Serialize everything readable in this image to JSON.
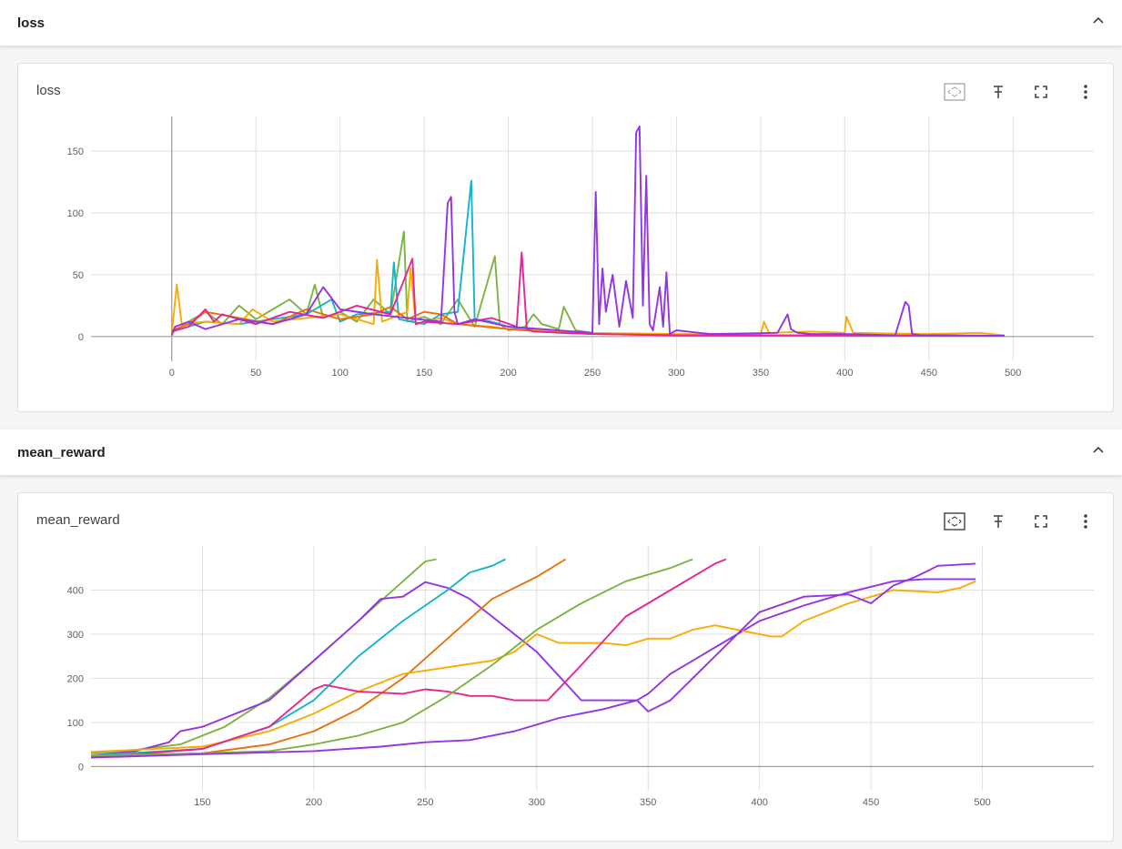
{
  "sections": [
    {
      "title": "loss",
      "card": {
        "title": "loss",
        "toolbar": [
          "fit-domain-icon",
          "pin-icon",
          "fullscreen-icon",
          "more-vert-icon"
        ]
      }
    },
    {
      "title": "mean_reward",
      "card": {
        "title": "mean_reward",
        "toolbar": [
          "fit-domain-icon",
          "pin-icon",
          "fullscreen-icon",
          "more-vert-icon"
        ]
      }
    }
  ],
  "colors": {
    "green": "#7cb342",
    "cyan": "#12b5cb",
    "orange": "#e8710a",
    "yellow": "#f9ab00",
    "pink": "#e52592",
    "purple": "#9334e6"
  },
  "chart_data": [
    {
      "type": "line",
      "title": "loss",
      "xlim": [
        -48,
        548
      ],
      "ylim": [
        -20,
        178
      ],
      "x_ticks": [
        0,
        50,
        100,
        150,
        200,
        250,
        300,
        350,
        400,
        450,
        500
      ],
      "y_ticks": [
        0,
        50,
        100,
        150
      ],
      "grid": true,
      "series": [
        {
          "color": "green",
          "x": [
            0,
            10,
            20,
            30,
            40,
            50,
            60,
            70,
            80,
            85,
            90,
            100,
            110,
            120,
            130,
            138,
            140,
            150,
            160,
            170,
            180,
            192,
            195,
            200,
            210,
            215,
            220,
            230,
            233,
            240,
            250,
            270,
            300,
            350,
            400,
            450,
            495
          ],
          "y": [
            3,
            12,
            20,
            10,
            25,
            14,
            22,
            30,
            18,
            42,
            15,
            20,
            12,
            30,
            18,
            85,
            12,
            16,
            10,
            30,
            8,
            65,
            10,
            5,
            8,
            18,
            10,
            6,
            24,
            5,
            3,
            2,
            1,
            1,
            1,
            0.5,
            0.5
          ]
        },
        {
          "color": "cyan",
          "x": [
            0,
            10,
            20,
            40,
            60,
            80,
            95,
            100,
            110,
            130,
            132,
            135,
            150,
            160,
            170,
            178,
            180,
            190,
            200,
            230,
            300,
            400,
            495
          ],
          "y": [
            4,
            8,
            12,
            10,
            14,
            18,
            30,
            12,
            18,
            20,
            60,
            14,
            10,
            18,
            20,
            126,
            14,
            12,
            8,
            3,
            1,
            1,
            0.5
          ]
        },
        {
          "color": "yellow",
          "x": [
            0,
            3,
            6,
            20,
            40,
            48,
            60,
            80,
            100,
            120,
            122,
            125,
            140,
            142,
            145,
            160,
            170,
            190,
            200,
            250,
            300,
            350,
            352,
            355,
            380,
            400,
            401,
            405,
            450,
            480,
            495
          ],
          "y": [
            3,
            42,
            10,
            12,
            10,
            22,
            12,
            15,
            18,
            10,
            62,
            12,
            20,
            55,
            10,
            15,
            10,
            8,
            6,
            3,
            2,
            2,
            12,
            3,
            4,
            3,
            16,
            3,
            2,
            3,
            1
          ]
        },
        {
          "color": "orange",
          "x": [
            0,
            10,
            20,
            40,
            60,
            80,
            100,
            120,
            130,
            140,
            150,
            160,
            170,
            200,
            220,
            250,
            300,
            400,
            495
          ],
          "y": [
            5,
            10,
            20,
            15,
            10,
            22,
            14,
            18,
            24,
            14,
            20,
            18,
            10,
            6,
            4,
            2,
            1,
            1,
            0.5
          ]
        },
        {
          "color": "pink",
          "x": [
            0,
            10,
            20,
            25,
            30,
            50,
            70,
            90,
            110,
            130,
            143,
            145,
            150,
            170,
            190,
            205,
            208,
            211,
            215,
            250,
            300,
            400,
            495
          ],
          "y": [
            4,
            8,
            22,
            12,
            18,
            10,
            20,
            15,
            25,
            18,
            63,
            10,
            12,
            10,
            15,
            8,
            68,
            6,
            4,
            2,
            1,
            1,
            0.5
          ]
        },
        {
          "color": "purple",
          "x": [
            0,
            2,
            10,
            20,
            40,
            60,
            80,
            90,
            100,
            120,
            140,
            160,
            164,
            166,
            168,
            170,
            180,
            200,
            220,
            240,
            250,
            252,
            254,
            256,
            258,
            262,
            266,
            270,
            274,
            276,
            278,
            280,
            282,
            284,
            286,
            290,
            292,
            294,
            296,
            300,
            320,
            360,
            366,
            368,
            372,
            380,
            400,
            430,
            436,
            438,
            440,
            445,
            460,
            495
          ],
          "y": [
            1,
            8,
            12,
            6,
            14,
            10,
            18,
            40,
            22,
            18,
            15,
            12,
            108,
            113,
            20,
            10,
            14,
            8,
            6,
            4,
            3,
            117,
            10,
            55,
            20,
            50,
            8,
            45,
            15,
            165,
            170,
            25,
            130,
            10,
            5,
            40,
            8,
            52,
            2,
            5,
            2,
            3,
            18,
            6,
            3,
            2,
            2,
            1,
            28,
            25,
            2,
            1,
            1,
            0.5
          ]
        }
      ]
    },
    {
      "type": "line",
      "title": "mean_reward",
      "xlim": [
        100,
        550
      ],
      "ylim": [
        -55,
        500
      ],
      "x_ticks": [
        150,
        200,
        250,
        300,
        350,
        400,
        450,
        500
      ],
      "y_ticks": [
        0,
        100,
        200,
        300,
        400
      ],
      "grid": true,
      "series": [
        {
          "color": "green",
          "x": [
            100,
            120,
            140,
            160,
            180,
            200,
            220,
            240,
            250,
            255
          ],
          "y": [
            30,
            38,
            50,
            90,
            155,
            240,
            330,
            420,
            465,
            470
          ]
        },
        {
          "color": "purple",
          "x": [
            100,
            120,
            135,
            140,
            150,
            160,
            180,
            200,
            220,
            230,
            240,
            250,
            260,
            270,
            300,
            320,
            330,
            345,
            350,
            360,
            380,
            400,
            420,
            440,
            460,
            475,
            497
          ],
          "y": [
            25,
            35,
            55,
            80,
            90,
            110,
            150,
            240,
            330,
            380,
            385,
            418,
            405,
            380,
            260,
            150,
            150,
            150,
            165,
            210,
            270,
            330,
            365,
            395,
            420,
            425,
            425
          ]
        },
        {
          "color": "cyan",
          "x": [
            100,
            150,
            180,
            200,
            220,
            240,
            260,
            270,
            280,
            286
          ],
          "y": [
            25,
            40,
            90,
            150,
            250,
            330,
            400,
            440,
            455,
            470
          ]
        },
        {
          "color": "orange",
          "x": [
            100,
            150,
            180,
            200,
            220,
            240,
            260,
            280,
            300,
            313
          ],
          "y": [
            22,
            30,
            50,
            80,
            130,
            200,
            290,
            380,
            430,
            470
          ]
        },
        {
          "color": "yellow",
          "x": [
            100,
            150,
            180,
            200,
            220,
            240,
            260,
            280,
            290,
            300,
            310,
            330,
            340,
            350,
            360,
            370,
            380,
            400,
            405,
            410,
            420,
            440,
            460,
            480,
            490,
            497
          ],
          "y": [
            33,
            45,
            80,
            120,
            170,
            210,
            225,
            240,
            260,
            300,
            280,
            280,
            275,
            290,
            290,
            310,
            320,
            300,
            295,
            295,
            330,
            370,
            400,
            395,
            405,
            420
          ]
        },
        {
          "color": "pink",
          "x": [
            100,
            150,
            180,
            200,
            205,
            220,
            240,
            250,
            260,
            270,
            280,
            290,
            305,
            320,
            340,
            360,
            380,
            385
          ],
          "y": [
            20,
            40,
            90,
            175,
            185,
            170,
            165,
            175,
            170,
            160,
            160,
            150,
            150,
            230,
            340,
            400,
            460,
            470
          ]
        },
        {
          "color": "green",
          "x": [
            100,
            150,
            180,
            200,
            220,
            240,
            260,
            280,
            300,
            320,
            340,
            360,
            370
          ],
          "y": [
            25,
            30,
            35,
            50,
            70,
            100,
            160,
            230,
            310,
            370,
            420,
            450,
            470
          ]
        },
        {
          "color": "purple",
          "x": [
            100,
            150,
            200,
            230,
            250,
            270,
            290,
            310,
            330,
            345,
            350,
            360,
            380,
            400,
            420,
            440,
            450,
            460,
            470,
            480,
            497
          ],
          "y": [
            20,
            28,
            35,
            45,
            55,
            60,
            80,
            110,
            130,
            150,
            125,
            150,
            250,
            350,
            385,
            390,
            370,
            410,
            430,
            455,
            460
          ]
        }
      ]
    }
  ]
}
